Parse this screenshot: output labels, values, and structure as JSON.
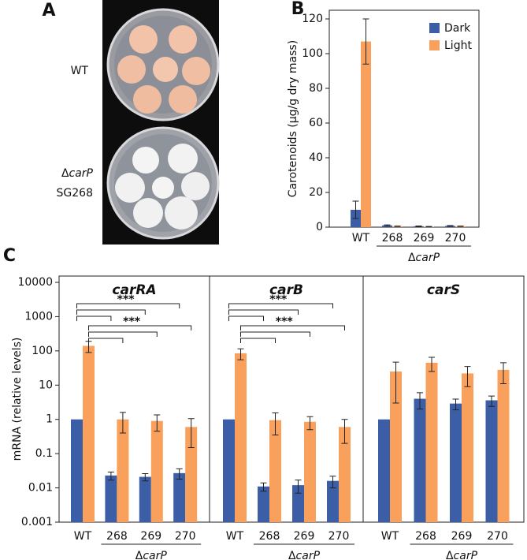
{
  "photo": {
    "panel_label": "A",
    "labels": [
      "WT",
      "ΔcarP",
      "SG268"
    ]
  },
  "chart_data": [
    {
      "type": "bar",
      "panel_label": "B",
      "ylabel": "Carotenoids (µg/g dry mass)",
      "categories": [
        "WT",
        "268",
        "269",
        "270"
      ],
      "group_label": "ΔcarP",
      "series": [
        {
          "name": "Dark",
          "color": "#3b5ea6",
          "values": [
            10,
            1,
            0.5,
            0.7
          ],
          "errors": [
            5,
            0.3,
            0.2,
            0.2
          ]
        },
        {
          "name": "Light",
          "color": "#f9a15c",
          "values": [
            107,
            0.5,
            0.3,
            0.5
          ],
          "errors": [
            13,
            0.1,
            0.1,
            0.1
          ]
        }
      ],
      "ylim": [
        0,
        125
      ],
      "yticks": [
        0,
        20,
        40,
        60,
        80,
        100,
        120
      ],
      "legend": "upper right"
    },
    {
      "type": "bar",
      "panel_label": "C",
      "title": "carRA",
      "log": true,
      "ylabel": "mRNA (relative levels)",
      "categories": [
        "WT",
        "268",
        "269",
        "270"
      ],
      "group_label": "ΔcarP",
      "series": [
        {
          "name": "Dark",
          "color": "#3b5ea6",
          "values": [
            1,
            0.023,
            0.021,
            0.027
          ],
          "errors": [
            null,
            0.006,
            0.005,
            0.009
          ]
        },
        {
          "name": "Light",
          "color": "#f9a15c",
          "values": [
            140,
            1.0,
            0.9,
            0.6
          ],
          "errors": [
            50,
            0.6,
            0.45,
            0.45
          ]
        }
      ],
      "ylim": [
        0.001,
        10000
      ],
      "yticks": [
        0.001,
        0.01,
        0.1,
        1,
        10,
        100,
        1000,
        10000
      ],
      "annotations": [
        "***",
        "***"
      ]
    },
    {
      "type": "bar",
      "title": "carB",
      "log": true,
      "categories": [
        "WT",
        "268",
        "269",
        "270"
      ],
      "group_label": "ΔcarP",
      "series": [
        {
          "name": "Dark",
          "color": "#3b5ea6",
          "values": [
            1,
            0.011,
            0.012,
            0.016
          ],
          "errors": [
            null,
            0.003,
            0.005,
            0.006
          ]
        },
        {
          "name": "Light",
          "color": "#f9a15c",
          "values": [
            85,
            0.95,
            0.85,
            0.6
          ],
          "errors": [
            30,
            0.6,
            0.35,
            0.4
          ]
        }
      ],
      "ylim": [
        0.001,
        10000
      ],
      "annotations": [
        "***",
        "***"
      ]
    },
    {
      "type": "bar",
      "title": "carS",
      "log": true,
      "categories": [
        "WT",
        "268",
        "269",
        "270"
      ],
      "group_label": "ΔcarP",
      "series": [
        {
          "name": "Dark",
          "color": "#3b5ea6",
          "values": [
            1,
            4,
            2.9,
            3.6
          ],
          "errors": [
            null,
            2,
            1,
            1.2
          ]
        },
        {
          "name": "Light",
          "color": "#f9a15c",
          "values": [
            25,
            45,
            22,
            28
          ],
          "errors": [
            22,
            20,
            13,
            17
          ]
        }
      ],
      "ylim": [
        0.001,
        10000
      ]
    }
  ]
}
